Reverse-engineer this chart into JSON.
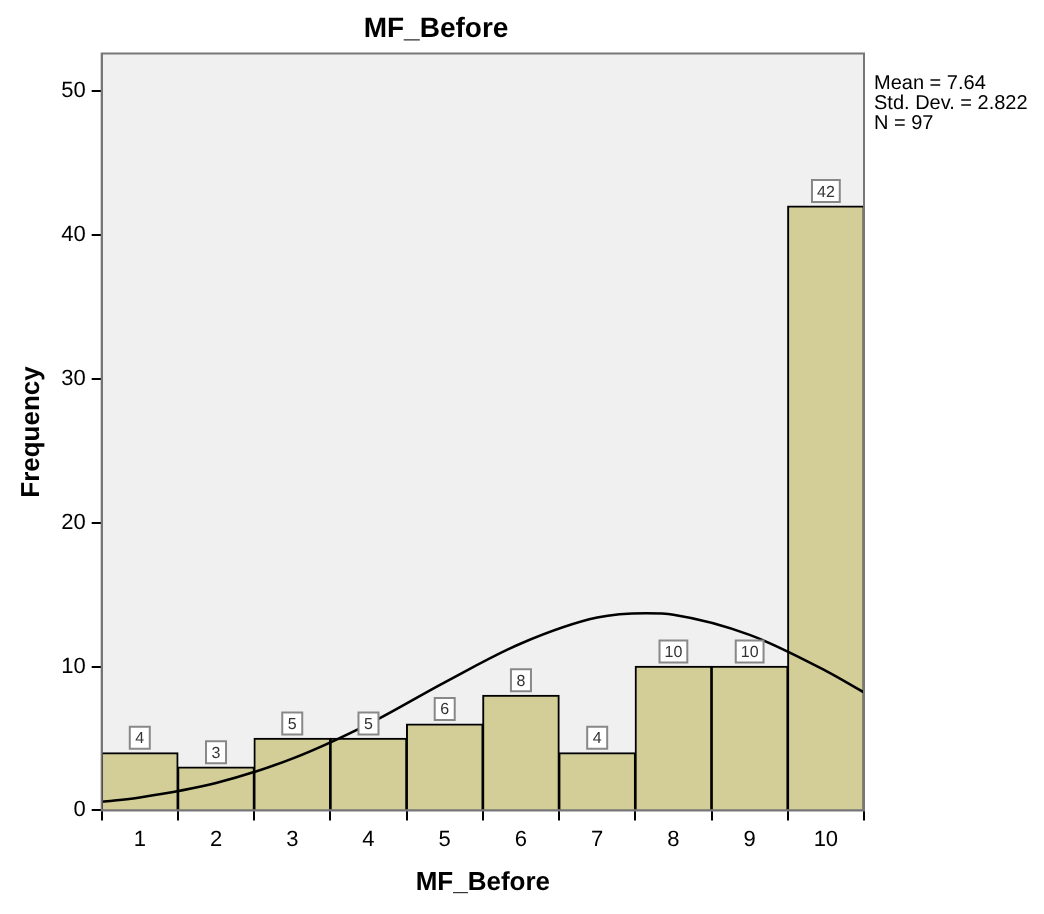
{
  "chart_data": {
    "type": "histogram",
    "title": "MF_Before",
    "xlabel": "MF_Before",
    "ylabel": "Frequency",
    "bins": [
      0.5,
      1.5,
      2.5,
      3.5,
      4.5,
      5.5,
      6.5,
      7.5,
      8.5,
      9.5,
      10.5
    ],
    "values": [
      4,
      3,
      5,
      5,
      6,
      8,
      4,
      10,
      10,
      42
    ],
    "color": "#d3ce97",
    "series": [
      {
        "type": "line",
        "color": "#000000",
        "x": [
          0.5,
          1,
          2,
          3,
          4,
          5,
          6,
          7,
          7.64,
          8,
          9,
          10,
          10.5
        ],
        "values": [
          0.6,
          0.9,
          1.9,
          3.6,
          6.0,
          8.9,
          11.6,
          13.4,
          13.7,
          13.6,
          12.2,
          9.7,
          8.2
        ]
      }
    ],
    "xlim": [
      0.5,
      10.5
    ],
    "xticks": [
      1,
      2,
      3,
      4,
      5,
      6,
      7,
      8,
      9,
      10
    ],
    "ylim": [
      0,
      52.6
    ],
    "yticks": [
      0,
      10,
      20,
      30,
      40,
      50
    ],
    "value_labels": [
      "4",
      "3",
      "5",
      "5",
      "6",
      "8",
      "4",
      "10",
      "10",
      "42"
    ],
    "grid": false,
    "legend": false,
    "annotations": [
      "Mean = 7.64",
      "Std. Dev. = 2.822",
      "N = 97"
    ]
  }
}
